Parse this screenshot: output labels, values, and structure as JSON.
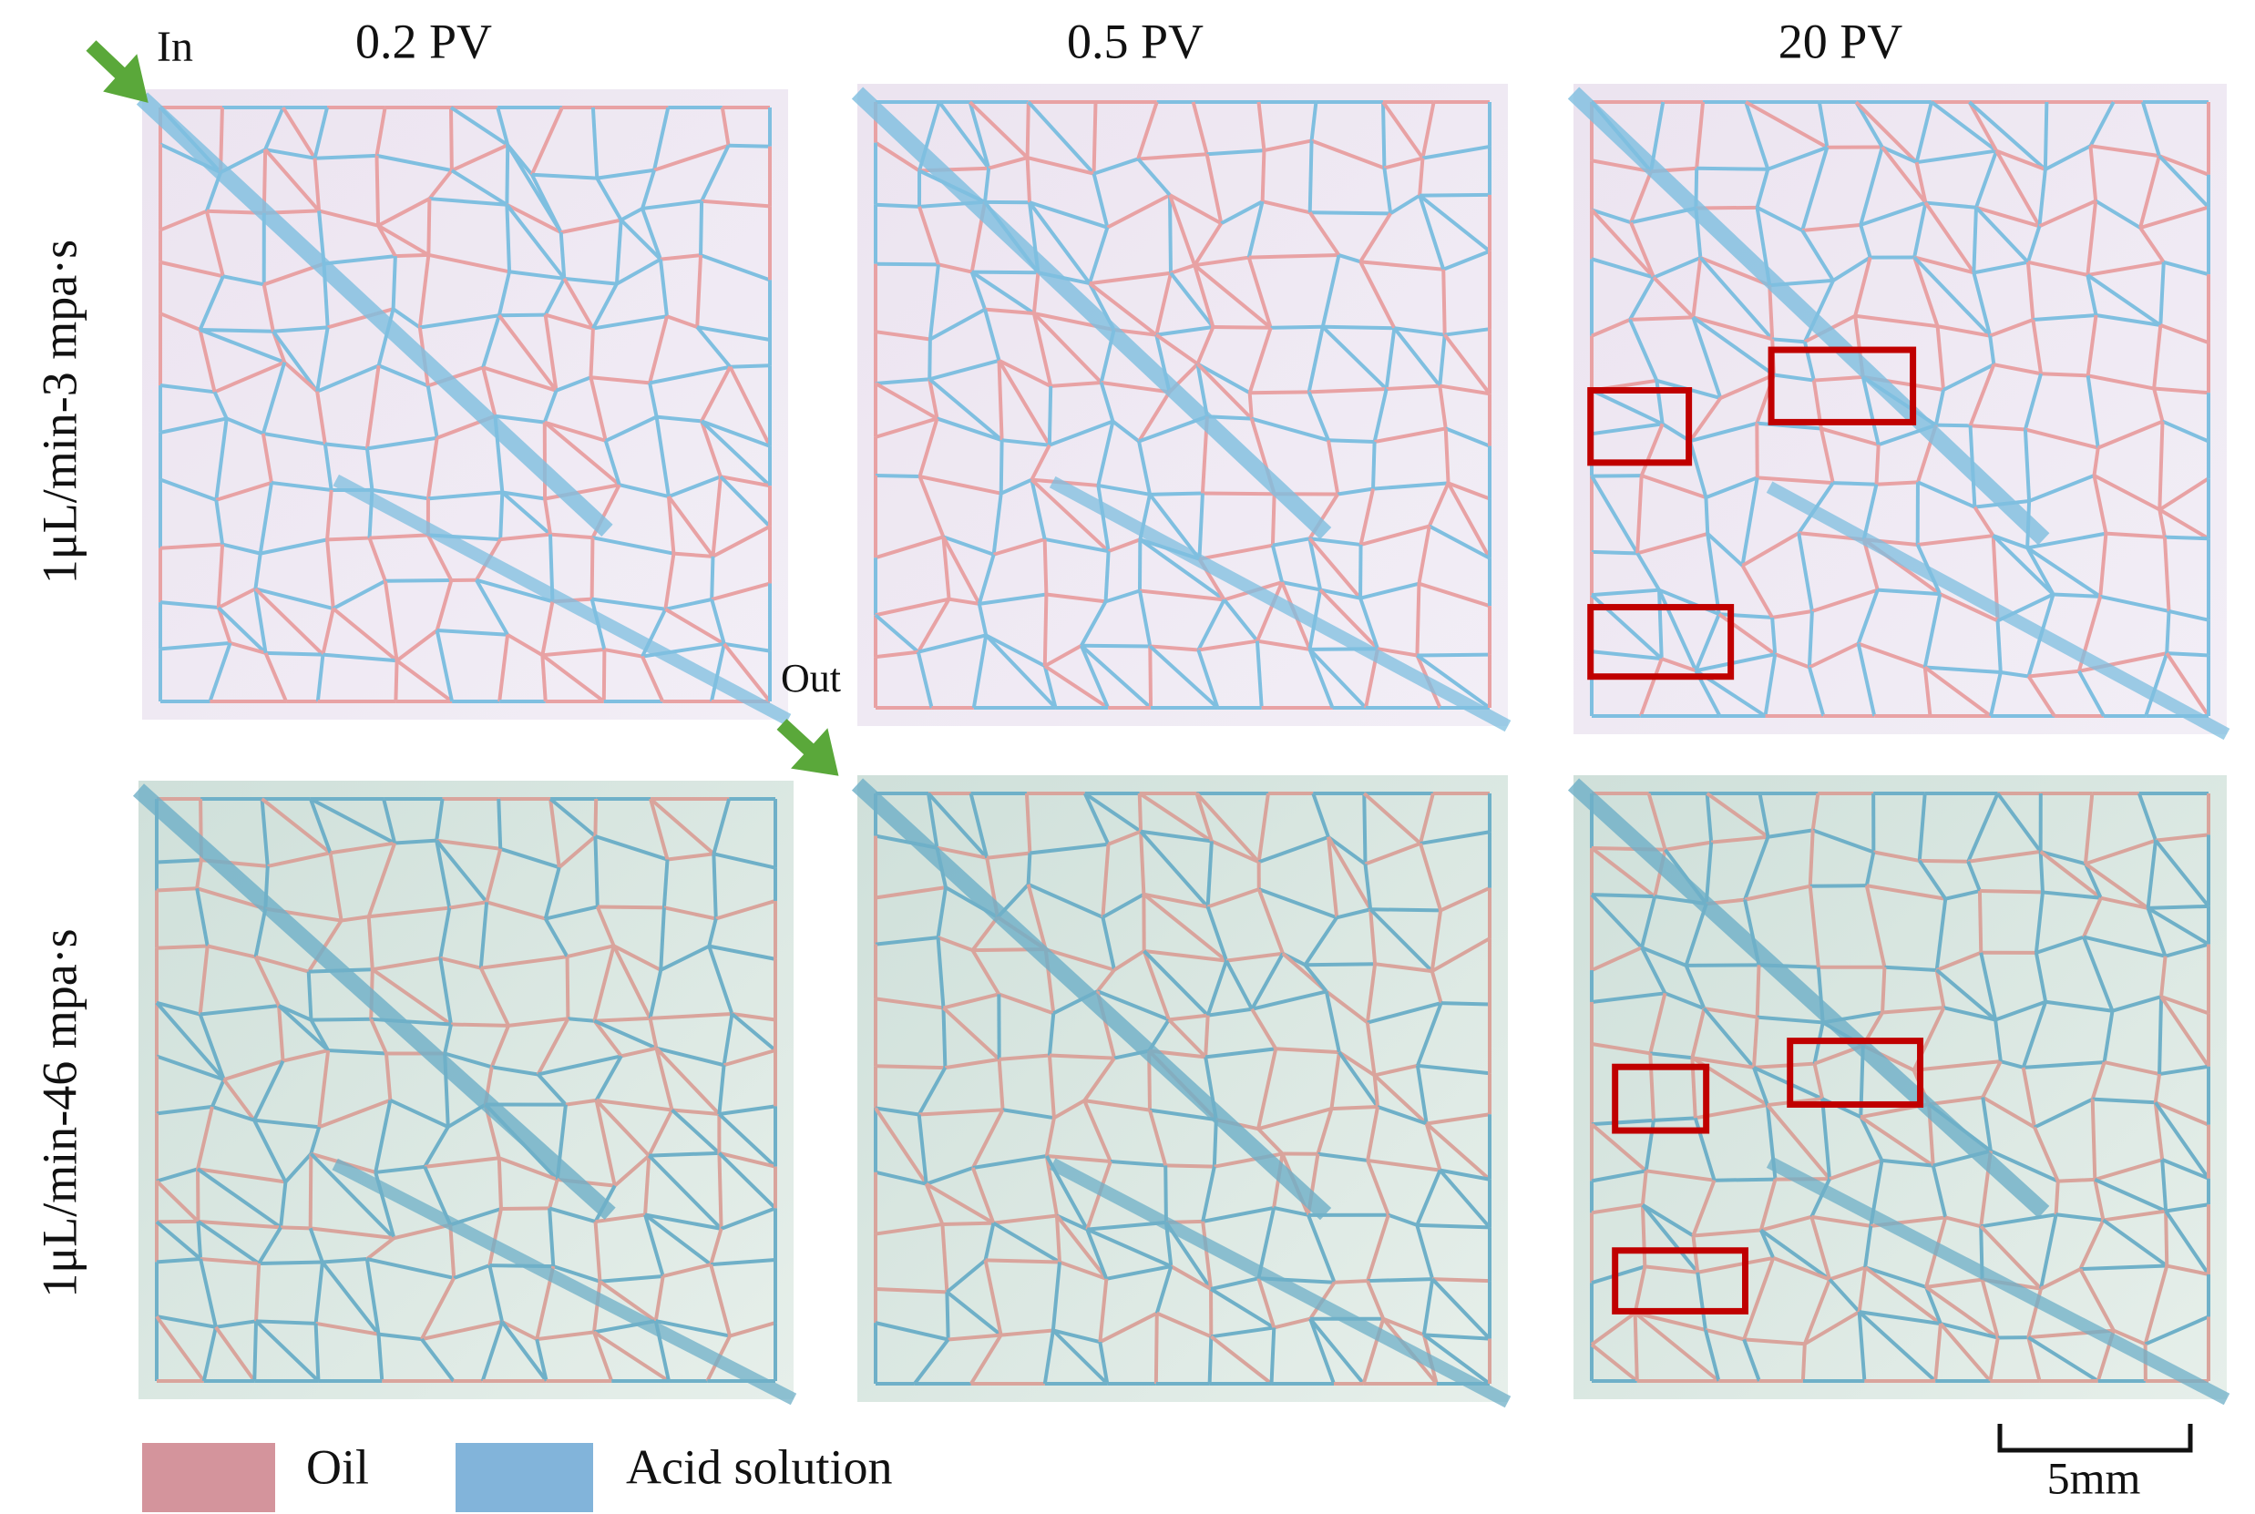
{
  "header": {
    "columns": [
      "0.2 PV",
      "0.5 PV",
      "20 PV"
    ]
  },
  "rows": [
    "1μL/min-3 mpa·s",
    "1μL/min-46 mpa·s"
  ],
  "annotations": {
    "inlet": "In",
    "outlet": "Out"
  },
  "legend": [
    "Oil",
    "Acid solution"
  ],
  "scale_bar": "5mm"
}
